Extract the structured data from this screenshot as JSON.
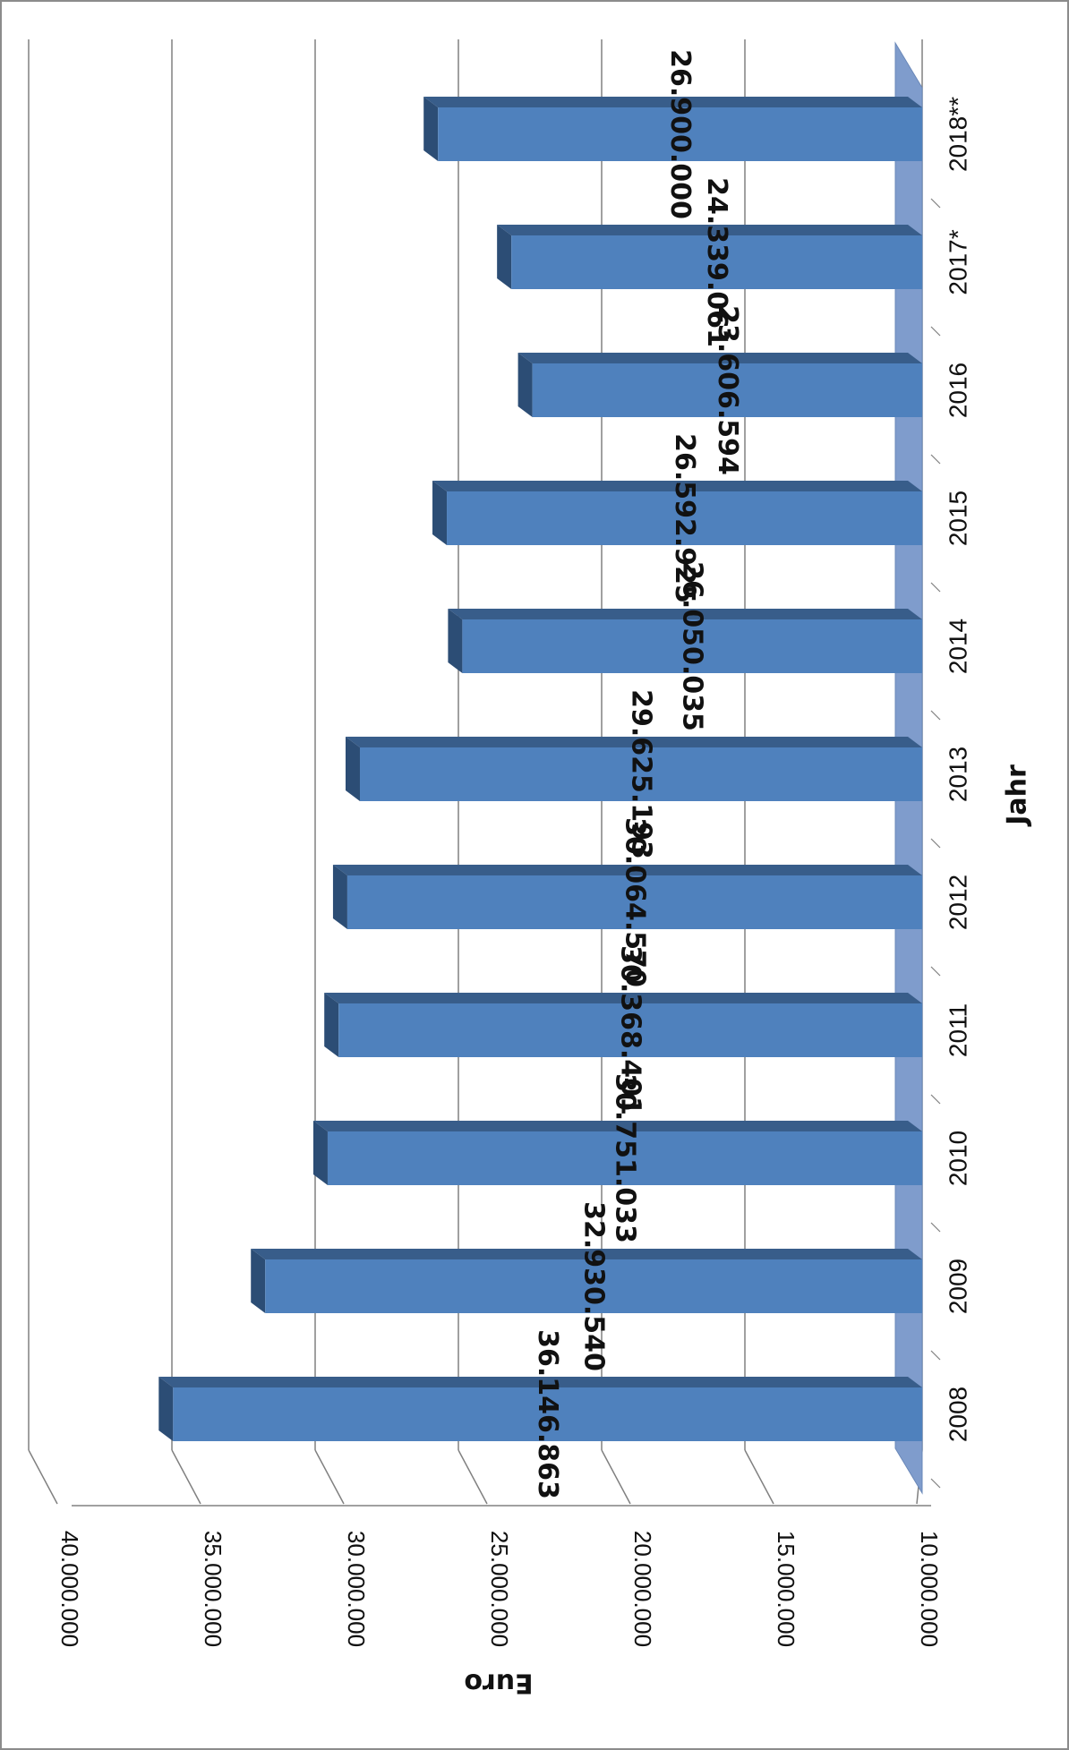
{
  "chart_data": {
    "type": "bar",
    "orientation": "horizontal-3d",
    "categories": [
      "2008",
      "2009",
      "2010",
      "2011",
      "2012",
      "2013",
      "2014",
      "2015",
      "2016",
      "2017*",
      "2018**"
    ],
    "values": [
      36146863,
      32930540,
      30751033,
      30368401,
      30064570,
      29625193,
      26050035,
      26592925,
      23606594,
      24339061,
      26900000
    ],
    "data_labels": [
      "36.146.863",
      "32.930.540",
      "30.751.033",
      "30.368.401",
      "30.064.570",
      "29.625.193",
      "26.050.035",
      "26.592.925",
      "23.606.594",
      "24.339.061",
      "26.900.000"
    ],
    "xlabel": "Jahr",
    "ylabel": "Euro",
    "ylim": [
      10000000,
      40000000
    ],
    "ticks": [
      10000000,
      15000000,
      20000000,
      25000000,
      30000000,
      35000000,
      40000000
    ],
    "tick_labels": [
      "10.000.000",
      "15.000.000",
      "20.000.000",
      "25.000.000",
      "30.000.000",
      "35.000.000",
      "40.000.000"
    ],
    "grid": true,
    "legend": "none",
    "colors": {
      "bar_front": "#4f81bd",
      "bar_top": "#385d8a",
      "bar_end": "#2c4d75",
      "floor": "#7f9ccc",
      "grid": "#808080"
    }
  }
}
